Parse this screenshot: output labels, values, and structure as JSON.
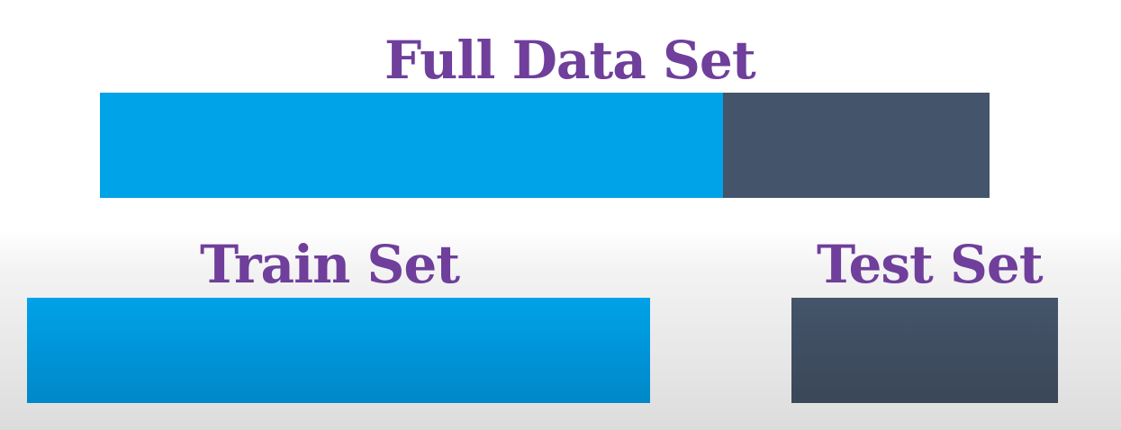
{
  "title": "Full Data Set",
  "train_label": "Train Set",
  "test_label": "Test Set",
  "split": {
    "train_fraction": 0.7,
    "test_fraction": 0.3
  },
  "colors": {
    "title_text": "#6f3f9b",
    "train": "#00a2e8",
    "train_gradient_end": "#0088c8",
    "test": "#44546a",
    "test_gradient_end": "#3a4758"
  }
}
